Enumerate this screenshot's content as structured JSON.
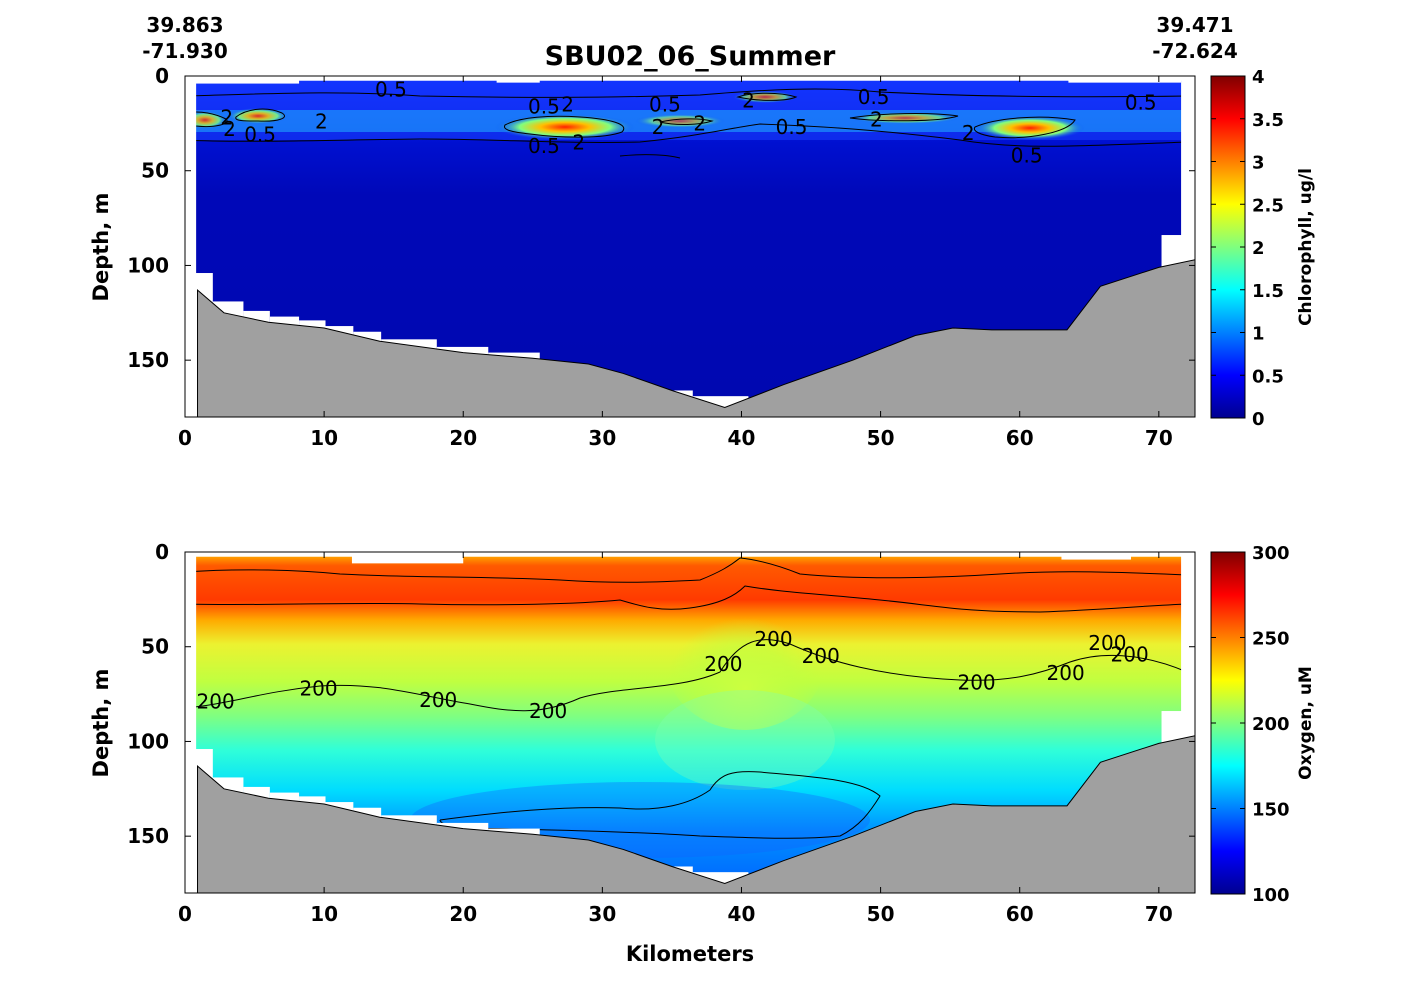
{
  "title": "SBU02_06_Summer",
  "start": {
    "lat": "39.863",
    "lon": "-71.930"
  },
  "end": {
    "lat": "39.471",
    "lon": "-72.624"
  },
  "xlabel": "Kilometers",
  "chart_data": [
    {
      "type": "heatmap",
      "variable": "Chlorophyll",
      "ylabel": "Depth, m",
      "colorbar_label": "Chlorophyll, ug/l",
      "xlim": [
        0,
        72.6
      ],
      "ylim": [
        180,
        0
      ],
      "xticks": [
        "0",
        "10",
        "20",
        "30",
        "40",
        "50",
        "60",
        "70"
      ],
      "yticks": [
        "0",
        "50",
        "100",
        "150"
      ],
      "clim": [
        0,
        4
      ],
      "colorbar_ticks": [
        "0",
        "0.5",
        "1",
        "1.5",
        "2",
        "2.5",
        "3",
        "3.5",
        "4"
      ],
      "contour_levels": [
        "0.5",
        "2"
      ],
      "contour_labels": [
        {
          "text": "0.5",
          "x": 14.8,
          "y": 7
        },
        {
          "text": "2",
          "x": 3,
          "y": 22
        },
        {
          "text": "2",
          "x": 3.2,
          "y": 28
        },
        {
          "text": "2",
          "x": 9.8,
          "y": 24
        },
        {
          "text": "0.5",
          "x": 5.4,
          "y": 31
        },
        {
          "text": "0.5",
          "x": 25.8,
          "y": 16
        },
        {
          "text": "2",
          "x": 27.5,
          "y": 15
        },
        {
          "text": "0.5",
          "x": 34.5,
          "y": 15
        },
        {
          "text": "2",
          "x": 34,
          "y": 27
        },
        {
          "text": "2",
          "x": 37,
          "y": 25
        },
        {
          "text": "0.5",
          "x": 25.8,
          "y": 37
        },
        {
          "text": "2",
          "x": 28.3,
          "y": 35
        },
        {
          "text": "2",
          "x": 40.5,
          "y": 13
        },
        {
          "text": "0.5",
          "x": 49.5,
          "y": 11
        },
        {
          "text": "0.5",
          "x": 68.7,
          "y": 14
        },
        {
          "text": "0.5",
          "x": 43.6,
          "y": 27
        },
        {
          "text": "2",
          "x": 49.7,
          "y": 23
        },
        {
          "text": "2",
          "x": 56.3,
          "y": 30
        },
        {
          "text": "0.5",
          "x": 60.5,
          "y": 42
        }
      ]
    },
    {
      "type": "heatmap",
      "variable": "Oxygen",
      "ylabel": "Depth, m",
      "colorbar_label": "Oxygen, uM",
      "xlim": [
        0,
        72.6
      ],
      "ylim": [
        180,
        0
      ],
      "xticks": [
        "0",
        "10",
        "20",
        "30",
        "40",
        "50",
        "60",
        "70"
      ],
      "yticks": [
        "0",
        "50",
        "100",
        "150"
      ],
      "clim": [
        100,
        300
      ],
      "colorbar_ticks": [
        "100",
        "150",
        "200",
        "250",
        "300"
      ],
      "contour_levels": [
        "200"
      ],
      "contour_labels": [
        {
          "text": "200",
          "x": 2.2,
          "y": 79
        },
        {
          "text": "200",
          "x": 9.6,
          "y": 72
        },
        {
          "text": "200",
          "x": 18.2,
          "y": 78
        },
        {
          "text": "200",
          "x": 26.1,
          "y": 84
        },
        {
          "text": "200",
          "x": 38.7,
          "y": 59
        },
        {
          "text": "200",
          "x": 42.3,
          "y": 46
        },
        {
          "text": "200",
          "x": 45.7,
          "y": 55
        },
        {
          "text": "200",
          "x": 56.9,
          "y": 69
        },
        {
          "text": "200",
          "x": 63.3,
          "y": 64
        },
        {
          "text": "200",
          "x": 66.3,
          "y": 48
        },
        {
          "text": "200",
          "x": 67.9,
          "y": 54
        }
      ]
    }
  ],
  "bathymetry": {
    "x": [
      0.9,
      2.8,
      6,
      10,
      14,
      20,
      25,
      29,
      31.5,
      35,
      38.8,
      43,
      48,
      52.5,
      55.2,
      58,
      63.4,
      65.8,
      70,
      72.6
    ],
    "depth": [
      113,
      125,
      130,
      133,
      140,
      146,
      149,
      152,
      157,
      166,
      175,
      163,
      150,
      137,
      133,
      134,
      134,
      111,
      101,
      97
    ]
  },
  "colors": {
    "bathymetry_fill": "#a0a0a0",
    "background": "#ffffff"
  }
}
